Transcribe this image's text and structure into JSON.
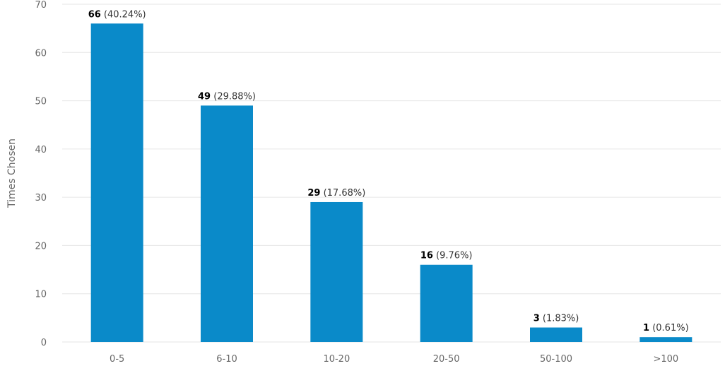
{
  "chart_data": {
    "type": "bar",
    "title": "",
    "xlabel": "",
    "ylabel": "Times Chosen",
    "ylim": [
      0,
      70
    ],
    "yticks": [
      0,
      10,
      20,
      30,
      40,
      50,
      60,
      70
    ],
    "grid": true,
    "legend": "none",
    "categories": [
      "0-5",
      "6-10",
      "10-20",
      "20-50",
      "50-100",
      ">100"
    ],
    "values": [
      66,
      49,
      29,
      16,
      3,
      1
    ],
    "percent_labels": [
      "(40.24%)",
      "(29.88%)",
      "(17.68%)",
      "(9.76%)",
      "(1.83%)",
      "(0.61%)"
    ],
    "bar_color": "#0a8ac9",
    "grid_color": "#e6e6e6"
  }
}
